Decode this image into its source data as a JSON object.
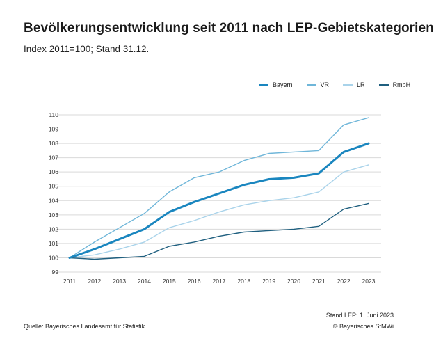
{
  "header": {
    "title": "Bevölkerungsentwicklung seit 2011 nach LEP-Gebietskategorien",
    "subtitle": "Index 2011=100; Stand 31.12."
  },
  "footer": {
    "source": "Quelle: Bayerisches Landesamt für Statistik",
    "stand": "Stand LEP: 1. Juni 2023",
    "copyright": "© Bayerisches StMWi"
  },
  "colors": {
    "bayern": "#1a86bf",
    "vr": "#6fb6d9",
    "lr": "#a9d3ea",
    "rmbh": "#1f5f7f",
    "grid": "#d9d9d9"
  },
  "chart_data": {
    "type": "line",
    "title": "Bevölkerungsentwicklung seit 2011 nach LEP-Gebietskategorien",
    "subtitle": "Index 2011=100; Stand 31.12.",
    "categories": [
      "2011",
      "2012",
      "2013",
      "2014",
      "2015",
      "2016",
      "2017",
      "2018",
      "2019",
      "2020",
      "2021",
      "2022",
      "2023"
    ],
    "ylim": [
      99,
      110
    ],
    "yticks": [
      99,
      100,
      101,
      102,
      103,
      104,
      105,
      106,
      107,
      108,
      109,
      110
    ],
    "grid": true,
    "legend_position": "top-right",
    "series": [
      {
        "name": "Bayern",
        "key": "bayern",
        "values": [
          100,
          100.6,
          101.3,
          102.0,
          103.2,
          103.9,
          104.5,
          105.1,
          105.5,
          105.6,
          105.9,
          107.4,
          108.0
        ]
      },
      {
        "name": "VR",
        "key": "vr",
        "values": [
          100,
          101.1,
          102.1,
          103.1,
          104.6,
          105.6,
          106.0,
          106.8,
          107.3,
          107.4,
          107.5,
          109.3,
          109.8
        ]
      },
      {
        "name": "LR",
        "key": "lr",
        "values": [
          100,
          100.2,
          100.6,
          101.1,
          102.1,
          102.6,
          103.2,
          103.7,
          104.0,
          104.2,
          104.6,
          106.0,
          106.5
        ]
      },
      {
        "name": "RmbH",
        "key": "rmbh",
        "values": [
          100,
          99.9,
          100.0,
          100.1,
          100.8,
          101.1,
          101.5,
          101.8,
          101.9,
          102.0,
          102.2,
          103.4,
          103.8
        ]
      }
    ]
  }
}
